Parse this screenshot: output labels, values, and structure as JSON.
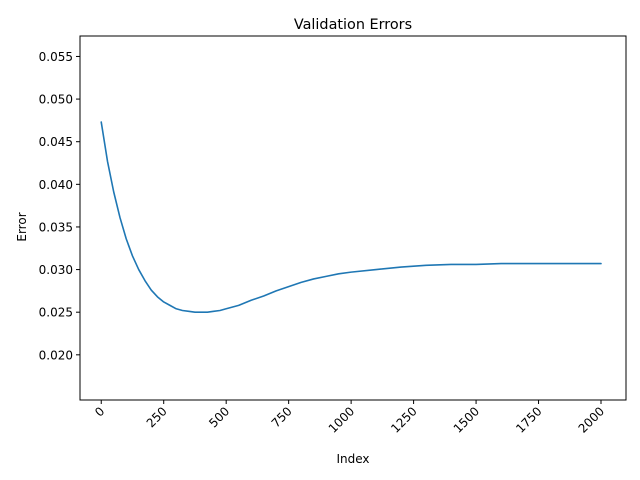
{
  "chart_data": {
    "type": "line",
    "title": "Validation Errors",
    "xlabel": "Index",
    "ylabel": "Error",
    "xlim": [
      -85,
      2100
    ],
    "ylim": [
      0.0147,
      0.0574
    ],
    "x_ticks": [
      0,
      250,
      500,
      750,
      1000,
      1250,
      1500,
      1750,
      2000
    ],
    "x_tick_labels": [
      "0",
      "250",
      "500",
      "750",
      "1000",
      "1250",
      "1500",
      "1750",
      "2000"
    ],
    "y_ticks": [
      0.02,
      0.025,
      0.03,
      0.035,
      0.04,
      0.045,
      0.05,
      0.055
    ],
    "y_tick_labels": [
      "0.020",
      "0.025",
      "0.030",
      "0.035",
      "0.040",
      "0.045",
      "0.050",
      "0.055"
    ],
    "x_tick_rotation_deg": 45,
    "grid": false,
    "legend": "none",
    "series": [
      {
        "color": "#1f77b4",
        "x": [
          0,
          25,
          50,
          75,
          100,
          125,
          150,
          175,
          200,
          225,
          250,
          275,
          300,
          325,
          350,
          375,
          400,
          425,
          450,
          475,
          500,
          550,
          600,
          650,
          700,
          750,
          800,
          850,
          900,
          950,
          1000,
          1100,
          1200,
          1300,
          1400,
          1500,
          1600,
          1700,
          1800,
          1900,
          2000
        ],
        "y": [
          0.0473,
          0.0427,
          0.0391,
          0.0361,
          0.0336,
          0.0316,
          0.03,
          0.0287,
          0.0276,
          0.0268,
          0.0262,
          0.0258,
          0.0254,
          0.0252,
          0.0251,
          0.025,
          0.025,
          0.025,
          0.0251,
          0.0252,
          0.0254,
          0.0258,
          0.0264,
          0.0269,
          0.0275,
          0.028,
          0.0285,
          0.0289,
          0.0292,
          0.0295,
          0.0297,
          0.03,
          0.0303,
          0.0305,
          0.0306,
          0.0306,
          0.0307,
          0.0307,
          0.0307,
          0.0307,
          0.0307
        ]
      }
    ]
  }
}
